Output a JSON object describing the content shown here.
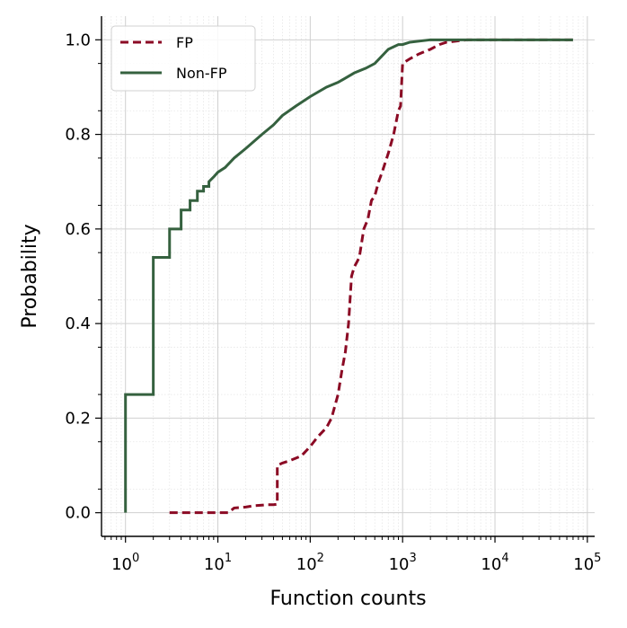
{
  "chart_data": {
    "type": "line",
    "title": "",
    "xlabel": "Function counts",
    "ylabel": "Probability",
    "xscale": "log",
    "xlim": [
      0.55,
      120000
    ],
    "ylim": [
      -0.05,
      1.05
    ],
    "x_ticks": [
      {
        "value": 1,
        "base": "10",
        "exp": "0"
      },
      {
        "value": 10,
        "base": "10",
        "exp": "1"
      },
      {
        "value": 100,
        "base": "10",
        "exp": "2"
      },
      {
        "value": 1000,
        "base": "10",
        "exp": "3"
      },
      {
        "value": 10000,
        "base": "10",
        "exp": "4"
      },
      {
        "value": 100000,
        "base": "10",
        "exp": "5"
      }
    ],
    "y_ticks": [
      {
        "value": 0.0,
        "label": "0.0"
      },
      {
        "value": 0.2,
        "label": "0.2"
      },
      {
        "value": 0.4,
        "label": "0.4"
      },
      {
        "value": 0.6,
        "label": "0.6"
      },
      {
        "value": 0.8,
        "label": "0.8"
      },
      {
        "value": 1.0,
        "label": "1.0"
      }
    ],
    "grid": "major and minor",
    "legend": "top-left",
    "series": [
      {
        "name": "FP",
        "color": "#8b0a24",
        "style": "dashed",
        "x": [
          3,
          4,
          6,
          10,
          13,
          15,
          20,
          25,
          30,
          35,
          40,
          44,
          44,
          50,
          60,
          80,
          100,
          120,
          150,
          170,
          200,
          220,
          240,
          260,
          280,
          300,
          320,
          340,
          380,
          420,
          460,
          500,
          550,
          600,
          700,
          800,
          900,
          950,
          1000,
          1200,
          1500,
          2000,
          2500,
          3000,
          5000,
          10000,
          70000
        ],
        "y": [
          0.0,
          0.0,
          0.0,
          0.0,
          0.0,
          0.01,
          0.012,
          0.015,
          0.016,
          0.017,
          0.017,
          0.018,
          0.1,
          0.105,
          0.11,
          0.12,
          0.14,
          0.16,
          0.18,
          0.2,
          0.25,
          0.3,
          0.34,
          0.4,
          0.5,
          0.52,
          0.53,
          0.54,
          0.6,
          0.62,
          0.66,
          0.67,
          0.7,
          0.72,
          0.76,
          0.8,
          0.85,
          0.86,
          0.95,
          0.96,
          0.97,
          0.98,
          0.99,
          0.995,
          1.0,
          1.0,
          1.0
        ]
      },
      {
        "name": "Non-FP",
        "color": "#35613f",
        "style": "solid",
        "x": [
          1,
          1,
          2,
          2,
          3,
          3,
          4,
          4,
          5,
          5,
          6,
          6,
          7,
          7,
          8,
          8,
          9,
          10,
          12,
          15,
          20,
          30,
          40,
          50,
          70,
          100,
          150,
          200,
          300,
          400,
          500,
          700,
          900,
          1000,
          1200,
          2000,
          5000,
          10000,
          70000
        ],
        "y": [
          0.0,
          0.25,
          0.25,
          0.54,
          0.54,
          0.6,
          0.6,
          0.64,
          0.64,
          0.66,
          0.66,
          0.68,
          0.68,
          0.69,
          0.69,
          0.7,
          0.71,
          0.72,
          0.73,
          0.75,
          0.77,
          0.8,
          0.82,
          0.84,
          0.86,
          0.88,
          0.9,
          0.91,
          0.93,
          0.94,
          0.95,
          0.98,
          0.99,
          0.99,
          0.995,
          1.0,
          1.0,
          1.0,
          1.0
        ]
      }
    ]
  }
}
